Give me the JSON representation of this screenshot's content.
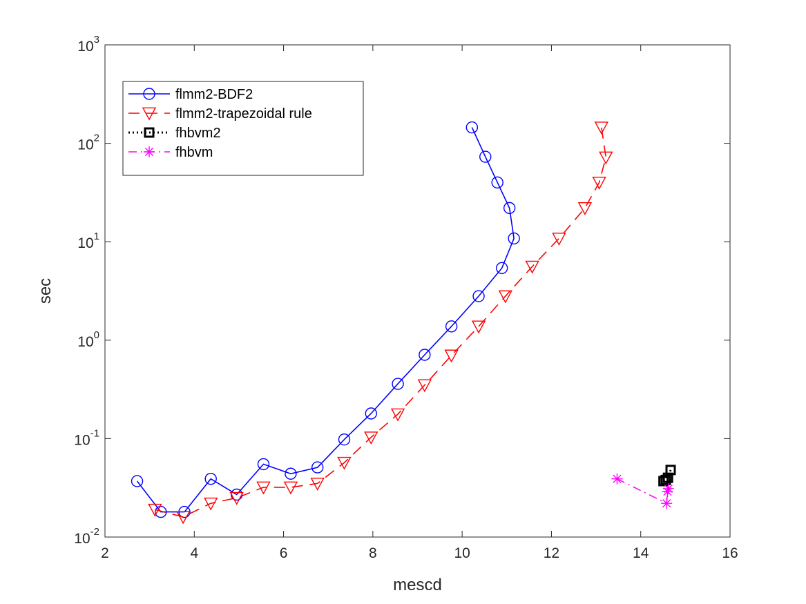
{
  "chart_data": {
    "type": "line",
    "xlabel": "mescd",
    "ylabel": "sec",
    "xlim": [
      2,
      16
    ],
    "ylim": [
      0.01,
      1000
    ],
    "yscale": "log",
    "grid": false,
    "legend_position": "top-left",
    "x_ticks": [
      "2",
      "4",
      "6",
      "8",
      "10",
      "12",
      "14",
      "16"
    ],
    "y_ticks": [
      {
        "base": "10",
        "exp": "-2"
      },
      {
        "base": "10",
        "exp": "-1"
      },
      {
        "base": "10",
        "exp": "0"
      },
      {
        "base": "10",
        "exp": "1"
      },
      {
        "base": "10",
        "exp": "2"
      },
      {
        "base": "10",
        "exp": "3"
      }
    ],
    "series": [
      {
        "name": "flmm2-BDF2",
        "color": "#0000ff",
        "marker": "circle",
        "line_style": "solid",
        "x": [
          2.72,
          3.25,
          3.78,
          4.37,
          4.95,
          5.55,
          6.16,
          6.76,
          7.36,
          7.96,
          8.56,
          9.16,
          9.76,
          10.37,
          10.89,
          11.16,
          11.06,
          10.79,
          10.52,
          10.22
        ],
        "y": [
          0.037,
          0.018,
          0.018,
          0.039,
          0.027,
          0.055,
          0.044,
          0.051,
          0.098,
          0.18,
          0.36,
          0.71,
          1.38,
          2.8,
          5.4,
          10.8,
          22,
          40,
          73,
          145
        ]
      },
      {
        "name": "flmm2-trapezoidal rule",
        "color": "#ff0000",
        "marker": "triangle-down",
        "line_style": "dashed",
        "x": [
          3.12,
          3.75,
          4.37,
          4.95,
          5.55,
          6.16,
          6.76,
          7.36,
          7.96,
          8.56,
          9.16,
          9.76,
          10.37,
          10.97,
          11.57,
          12.17,
          12.75,
          13.07,
          13.22,
          13.12
        ],
        "y": [
          0.019,
          0.016,
          0.022,
          0.025,
          0.032,
          0.032,
          0.035,
          0.057,
          0.103,
          0.177,
          0.35,
          0.7,
          1.38,
          2.8,
          5.6,
          10.8,
          22,
          40,
          72,
          145
        ]
      },
      {
        "name": "fhbvm2",
        "color": "#000000",
        "marker": "square",
        "line_style": "dotted",
        "x": [
          14.51,
          14.56,
          14.61,
          14.67
        ],
        "y": [
          0.037,
          0.038,
          0.04,
          0.048
        ]
      },
      {
        "name": "fhbvm",
        "color": "#ff00ff",
        "marker": "star",
        "line_style": "dash-dot",
        "x": [
          13.47,
          14.58,
          14.6,
          14.62
        ],
        "y": [
          0.039,
          0.022,
          0.029,
          0.031
        ]
      }
    ]
  }
}
